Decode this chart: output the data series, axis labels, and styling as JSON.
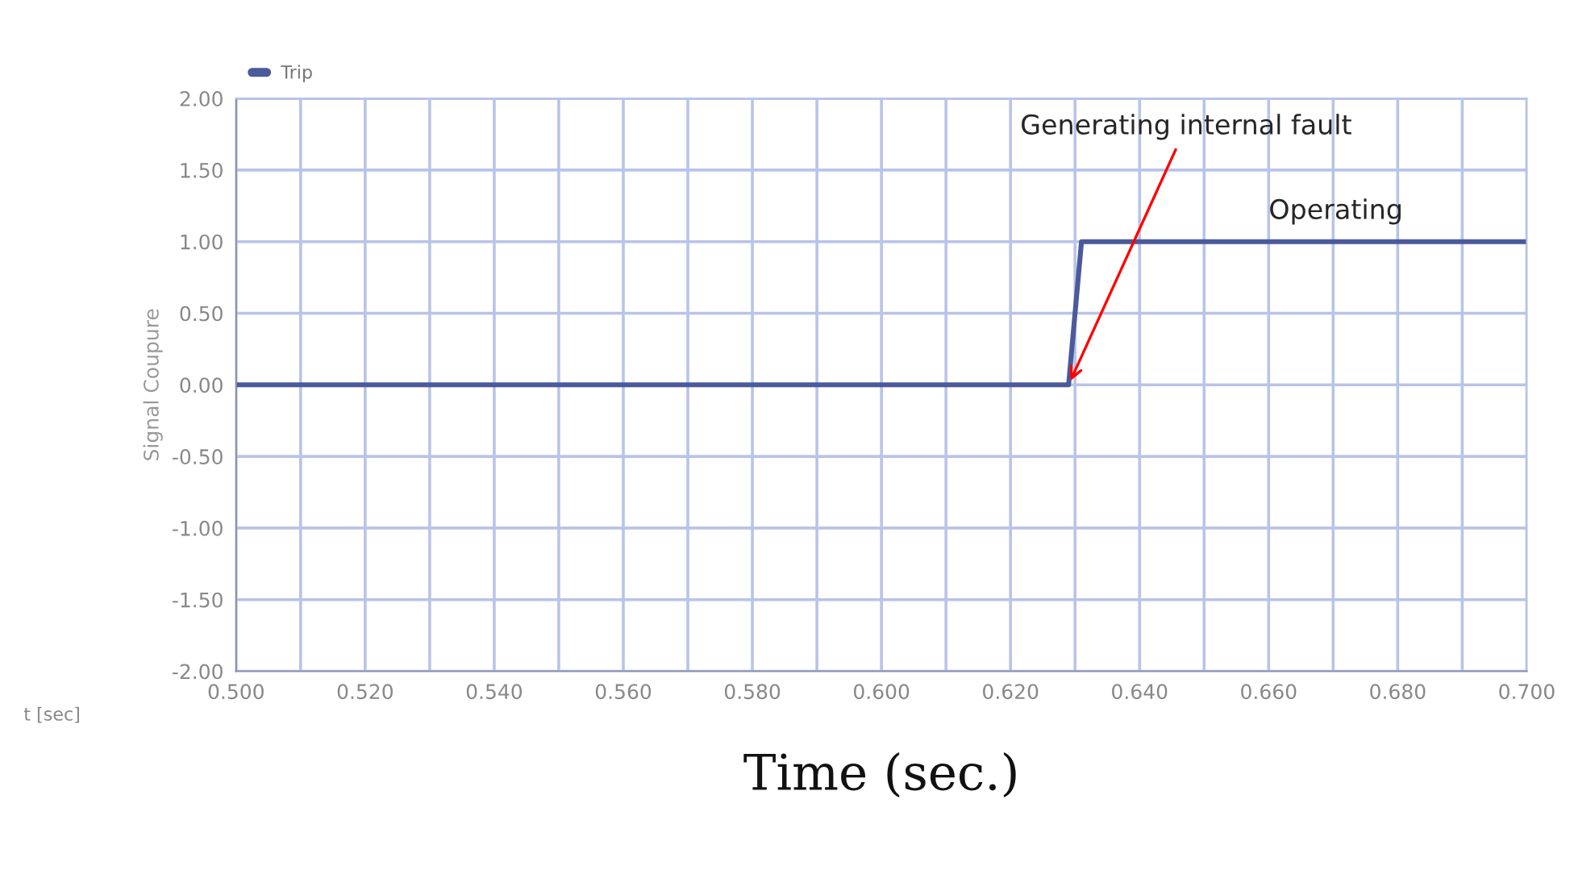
{
  "chart_data": {
    "type": "line",
    "xlabel": "Time (sec.)",
    "ylabel": "Signal Coupure",
    "series": [
      {
        "name": "Trip",
        "color": "#4a5a9a",
        "x": [
          0.5,
          0.629,
          0.631,
          0.7
        ],
        "values": [
          0,
          0,
          1,
          1
        ]
      }
    ],
    "xlim": [
      0.5,
      0.7
    ],
    "ylim": [
      -2,
      2
    ],
    "xticks": [
      {
        "value": 0.5,
        "label": "0.500"
      },
      {
        "value": 0.51,
        "label": null
      },
      {
        "value": 0.52,
        "label": "0.520"
      },
      {
        "value": 0.53,
        "label": null
      },
      {
        "value": 0.54,
        "label": "0.540"
      },
      {
        "value": 0.55,
        "label": null
      },
      {
        "value": 0.56,
        "label": "0.560"
      },
      {
        "value": 0.57,
        "label": null
      },
      {
        "value": 0.58,
        "label": "0.580"
      },
      {
        "value": 0.59,
        "label": null
      },
      {
        "value": 0.6,
        "label": "0.600"
      },
      {
        "value": 0.61,
        "label": null
      },
      {
        "value": 0.62,
        "label": "0.620"
      },
      {
        "value": 0.63,
        "label": null
      },
      {
        "value": 0.64,
        "label": "0.640"
      },
      {
        "value": 0.65,
        "label": null
      },
      {
        "value": 0.66,
        "label": "0.660"
      },
      {
        "value": 0.67,
        "label": null
      },
      {
        "value": 0.68,
        "label": "0.680"
      },
      {
        "value": 0.69,
        "label": null
      },
      {
        "value": 0.7,
        "label": "0.700"
      }
    ],
    "yticks": [
      {
        "value": 2,
        "label": "2.00"
      },
      {
        "value": 1.5,
        "label": "1.50"
      },
      {
        "value": 1,
        "label": "1.00"
      },
      {
        "value": 0.5,
        "label": "0.50"
      },
      {
        "value": 0,
        "label": "0.00"
      },
      {
        "value": -0.5,
        "label": "-0.50"
      },
      {
        "value": -1,
        "label": "-1.00"
      },
      {
        "value": -1.5,
        "label": "-1.50"
      },
      {
        "value": -2,
        "label": "-2.00"
      }
    ],
    "grid": true,
    "legend": "top left",
    "marker": "none",
    "line_style": "solid",
    "annotations": [
      {
        "text": "Generating internal fault",
        "x": 0.629,
        "y": 0
      },
      {
        "text": "Operating",
        "x": 0.66,
        "y": 1
      },
      "t [sec]"
    ]
  }
}
